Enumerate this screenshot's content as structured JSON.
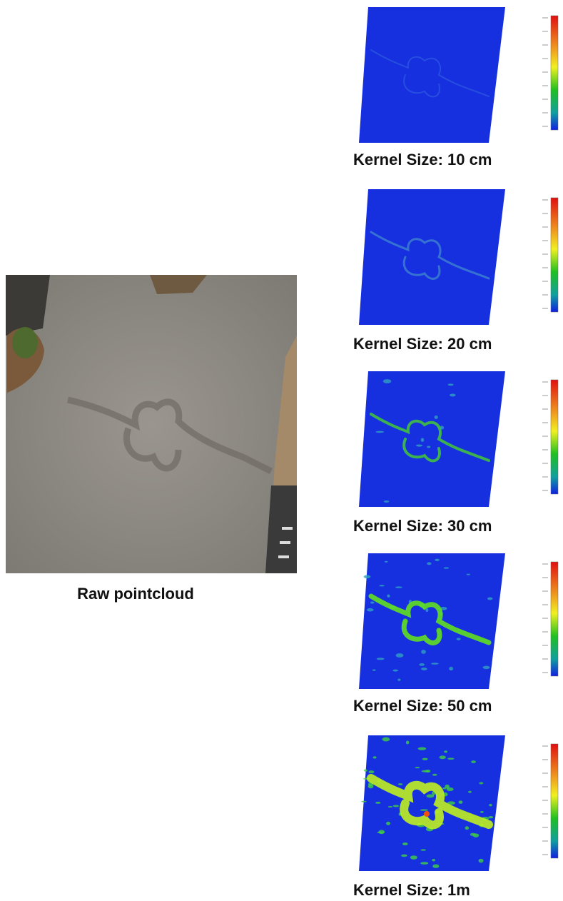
{
  "figure": {
    "raw": {
      "caption": "Raw pointcloud"
    },
    "panels": [
      {
        "caption": "Kernel Size: 10 cm"
      },
      {
        "caption": "Kernel Size: 20 cm"
      },
      {
        "caption": "Kernel Size: 30 cm"
      },
      {
        "caption": "Kernel Size: 50 cm"
      },
      {
        "caption": "Kernel Size: 1m"
      }
    ]
  }
}
